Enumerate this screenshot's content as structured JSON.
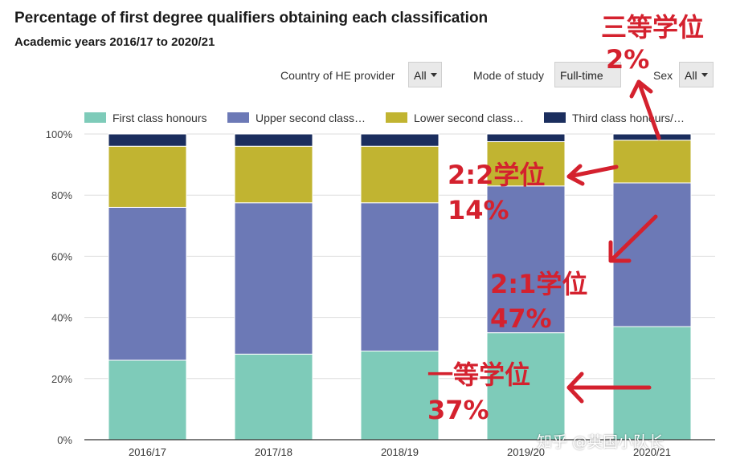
{
  "header": {
    "title": "Percentage of first degree qualifiers obtaining each classification",
    "subtitle": "Academic years 2016/17 to 2020/21"
  },
  "filters": {
    "country": {
      "label": "Country of HE provider",
      "value": "All"
    },
    "mode": {
      "label": "Mode of study",
      "value": "Full-time"
    },
    "sex": {
      "label": "Sex",
      "value": "All"
    }
  },
  "legend": [
    {
      "label": "First class honours",
      "color": "#7ecbb9"
    },
    {
      "label": "Upper second class…",
      "color": "#6c79b6"
    },
    {
      "label": "Lower second class…",
      "color": "#c1b431"
    },
    {
      "label": "Third class honours/…",
      "color": "#1b2e5e"
    }
  ],
  "chart_data": {
    "type": "bar",
    "stacked": true,
    "categories": [
      "2016/17",
      "2017/18",
      "2018/19",
      "2019/20",
      "2020/21"
    ],
    "series": [
      {
        "name": "First class honours",
        "color": "#7ecbb9",
        "values": [
          26,
          28,
          29,
          35,
          37
        ]
      },
      {
        "name": "Upper second class…",
        "color": "#6c79b6",
        "values": [
          50,
          49.5,
          48.5,
          48,
          47
        ]
      },
      {
        "name": "Lower second class…",
        "color": "#c1b431",
        "values": [
          20,
          18.5,
          18.5,
          14.5,
          14
        ]
      },
      {
        "name": "Third class honours/…",
        "color": "#1b2e5e",
        "values": [
          4,
          4,
          4,
          2.5,
          2
        ]
      }
    ],
    "ylim": [
      0,
      100
    ],
    "yticks": [
      "0%",
      "20%",
      "40%",
      "60%",
      "80%",
      "100%"
    ],
    "grid": true,
    "legend_position": "top"
  },
  "annotations": {
    "third": {
      "line1": "三等学位",
      "line2": "2%"
    },
    "lower": {
      "line1": "2:2学位",
      "line2": "14%"
    },
    "upper": {
      "line1": "2:1学位",
      "line2": "47%"
    },
    "first": {
      "line1": "一等学位",
      "line2": "37%"
    },
    "color": "#d4212e"
  },
  "watermark": "知乎 @英国小队长"
}
